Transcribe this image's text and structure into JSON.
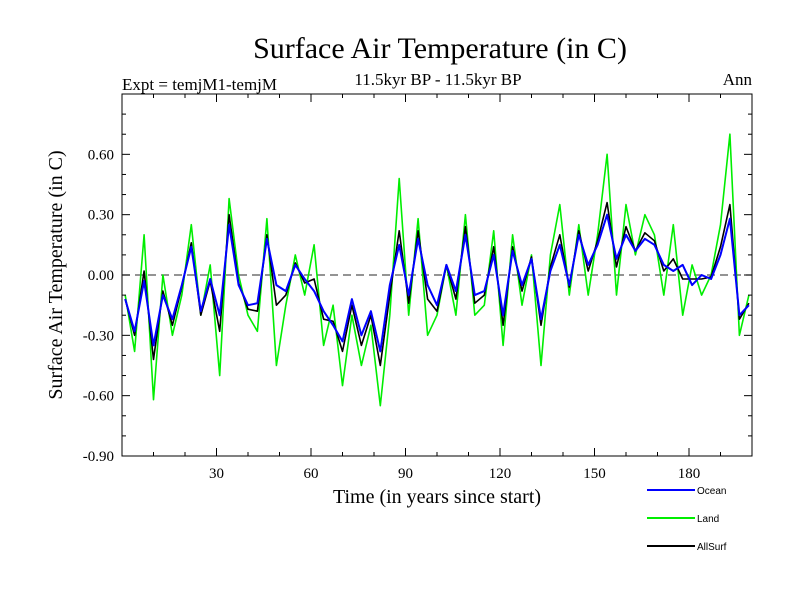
{
  "chart_data": {
    "type": "line",
    "title": "Surface Air Temperature (in C)",
    "subtitle": "11.5kyr BP - 11.5kyr BP",
    "left_label": "Expt = temjM1-temjM",
    "right_label": "Ann",
    "xlabel": "Time (in years since start)",
    "ylabel": "Surface Air Temperature (in C)",
    "xlim": [
      0,
      200
    ],
    "ylim": [
      -0.9,
      0.9
    ],
    "x_ticks": [
      30,
      60,
      90,
      120,
      150,
      180
    ],
    "x_tick_labels": [
      "30",
      "60",
      "90",
      "120",
      "150",
      "180"
    ],
    "y_ticks": [
      0.6,
      0.3,
      0.0,
      -0.3,
      -0.6,
      -0.9
    ],
    "y_tick_labels": [
      "0.60",
      "0.30",
      "0.00",
      "-0.30",
      "-0.60",
      "-0.90"
    ],
    "zero_line": true,
    "legend_position": "bottom-right",
    "x": [
      1,
      4,
      7,
      10,
      13,
      16,
      19,
      22,
      25,
      28,
      31,
      34,
      37,
      40,
      43,
      46,
      49,
      52,
      55,
      58,
      61,
      64,
      67,
      70,
      73,
      76,
      79,
      82,
      85,
      88,
      91,
      94,
      97,
      100,
      103,
      106,
      109,
      112,
      115,
      118,
      121,
      124,
      127,
      130,
      133,
      136,
      139,
      142,
      145,
      148,
      151,
      154,
      157,
      160,
      163,
      166,
      169,
      172,
      175,
      178,
      181,
      184,
      187,
      190,
      193,
      196,
      199
    ],
    "series": [
      {
        "name": "Ocean",
        "color": "#0000ff",
        "values": [
          -0.12,
          -0.28,
          -0.03,
          -0.35,
          -0.1,
          -0.22,
          -0.05,
          0.14,
          -0.18,
          -0.02,
          -0.2,
          0.25,
          -0.05,
          -0.15,
          -0.14,
          0.18,
          -0.05,
          -0.08,
          0.05,
          -0.02,
          -0.08,
          -0.18,
          -0.25,
          -0.33,
          -0.12,
          -0.3,
          -0.18,
          -0.38,
          -0.05,
          0.15,
          -0.1,
          0.18,
          -0.05,
          -0.15,
          0.05,
          -0.08,
          0.2,
          -0.1,
          -0.08,
          0.1,
          -0.2,
          0.12,
          -0.05,
          0.08,
          -0.22,
          0.02,
          0.15,
          -0.05,
          0.2,
          0.05,
          0.15,
          0.3,
          0.08,
          0.2,
          0.12,
          0.18,
          0.15,
          0.05,
          0.02,
          0.05,
          -0.05,
          0.0,
          -0.02,
          0.1,
          0.28,
          -0.2,
          -0.15
        ]
      },
      {
        "name": "Land",
        "color": "#00ee00",
        "values": [
          -0.1,
          -0.38,
          0.2,
          -0.62,
          0.0,
          -0.3,
          -0.1,
          0.25,
          -0.2,
          0.05,
          -0.5,
          0.38,
          0.0,
          -0.2,
          -0.28,
          0.28,
          -0.45,
          -0.15,
          0.1,
          -0.1,
          0.15,
          -0.35,
          -0.15,
          -0.55,
          -0.2,
          -0.45,
          -0.25,
          -0.65,
          -0.2,
          0.48,
          -0.2,
          0.28,
          -0.3,
          -0.2,
          0.05,
          -0.2,
          0.3,
          -0.2,
          -0.15,
          0.22,
          -0.35,
          0.2,
          -0.15,
          0.1,
          -0.45,
          0.1,
          0.35,
          -0.1,
          0.25,
          -0.1,
          0.2,
          0.6,
          -0.1,
          0.35,
          0.1,
          0.3,
          0.2,
          -0.1,
          0.25,
          -0.2,
          0.05,
          -0.1,
          0.0,
          0.25,
          0.7,
          -0.3,
          -0.1
        ]
      },
      {
        "name": "AllSurf",
        "color": "#000000",
        "values": [
          -0.12,
          -0.3,
          0.02,
          -0.42,
          -0.08,
          -0.25,
          -0.06,
          0.16,
          -0.2,
          -0.03,
          -0.28,
          0.3,
          -0.04,
          -0.17,
          -0.18,
          0.2,
          -0.15,
          -0.1,
          0.06,
          -0.04,
          -0.02,
          -0.22,
          -0.23,
          -0.38,
          -0.15,
          -0.35,
          -0.2,
          -0.45,
          -0.1,
          0.22,
          -0.14,
          0.22,
          -0.12,
          -0.18,
          0.05,
          -0.12,
          0.24,
          -0.14,
          -0.1,
          0.14,
          -0.25,
          0.14,
          -0.08,
          0.09,
          -0.25,
          0.04,
          0.2,
          -0.06,
          0.22,
          0.02,
          0.17,
          0.36,
          0.04,
          0.24,
          0.12,
          0.21,
          0.17,
          0.02,
          0.08,
          -0.02,
          -0.02,
          -0.02,
          -0.01,
          0.14,
          0.35,
          -0.22,
          -0.14
        ]
      }
    ]
  }
}
